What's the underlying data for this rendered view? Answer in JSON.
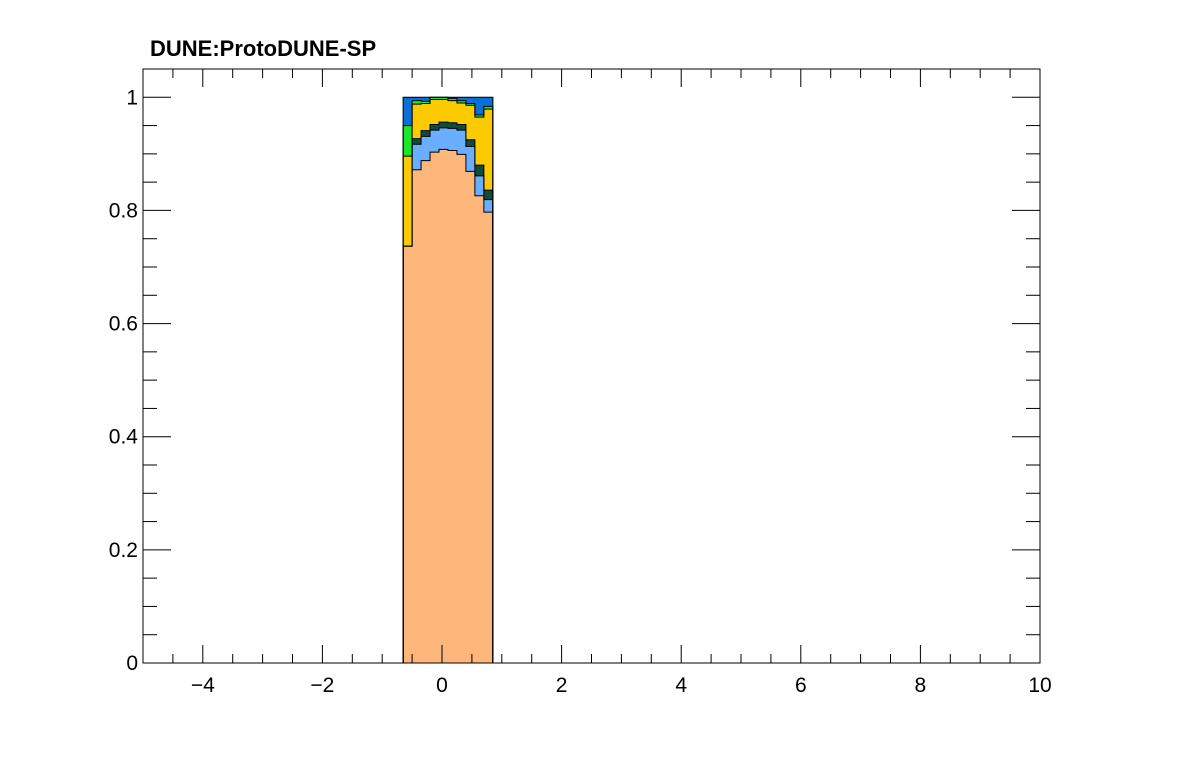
{
  "chart_data": {
    "type": "bar",
    "subtype": "stacked-histogram",
    "title": "DUNE:ProtoDUNE-SP",
    "xlabel": "",
    "ylabel": "",
    "xlim": [
      -5,
      10
    ],
    "ylim": [
      0,
      1.05
    ],
    "grid": false,
    "legend": "none",
    "xticks": [
      -4,
      -2,
      0,
      2,
      4,
      6,
      8,
      10
    ],
    "xtick_labels": [
      "−4",
      "−2",
      "0",
      "2",
      "4",
      "6",
      "8",
      "10"
    ],
    "yticks": [
      0,
      0.2,
      0.4,
      0.6,
      0.8,
      1
    ],
    "ytick_labels": [
      "0",
      "0.2",
      "0.4",
      "0.6",
      "0.8",
      "1"
    ],
    "bin_edges": [
      -0.65,
      -0.5,
      -0.35,
      -0.2,
      -0.05,
      0.1,
      0.25,
      0.4,
      0.55,
      0.7,
      0.85
    ],
    "series": [
      {
        "color": "#fdb77a",
        "values": [
          0.737,
          0.872,
          0.888,
          0.903,
          0.908,
          0.906,
          0.899,
          0.869,
          0.826,
          0.797
        ]
      },
      {
        "color": "#6aaeff",
        "values": [
          0.0,
          0.045,
          0.043,
          0.039,
          0.038,
          0.039,
          0.043,
          0.044,
          0.035,
          0.022
        ]
      },
      {
        "color": "#0f4d3a",
        "values": [
          0.0,
          0.01,
          0.01,
          0.01,
          0.01,
          0.01,
          0.01,
          0.012,
          0.019,
          0.017
        ]
      },
      {
        "color": "#fcca00",
        "values": [
          0.159,
          0.061,
          0.048,
          0.044,
          0.04,
          0.039,
          0.038,
          0.061,
          0.085,
          0.143
        ]
      },
      {
        "color": "#1be72a",
        "values": [
          0.054,
          0.006,
          0.004,
          0.004,
          0.004,
          0.004,
          0.004,
          0.003,
          0.004,
          0.005
        ]
      },
      {
        "color": "#0b6fd8",
        "values": [
          0.05,
          0.006,
          0.007,
          0.0,
          0.0,
          0.002,
          0.006,
          0.011,
          0.031,
          0.016
        ]
      }
    ]
  }
}
